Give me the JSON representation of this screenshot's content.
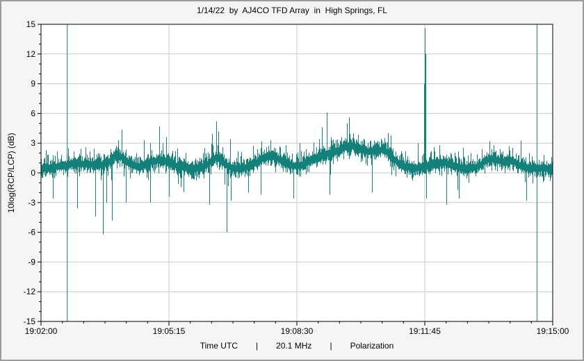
{
  "chart_data": {
    "type": "line",
    "title": "1/14/22  by  AJ4CO TFD Array  in  High Springs, FL",
    "ylabel": "10log(RCP/LCP) (dB)",
    "footer": {
      "left": "Time UTC",
      "sep": "|",
      "mid": "20.1 MHz",
      "right": "Polarization"
    },
    "x_axis": {
      "span_seconds": 780,
      "major_ticks": [
        {
          "t": 0,
          "label": "19:02:00"
        },
        {
          "t": 195,
          "label": "19:05:15"
        },
        {
          "t": 390,
          "label": "19:08:30"
        },
        {
          "t": 585,
          "label": "19:11:45"
        },
        {
          "t": 780,
          "label": "19:15:00"
        }
      ],
      "minor_step_seconds": 32.5
    },
    "y_axis": {
      "min": -15,
      "max": 15,
      "major_step": 3,
      "minor_step": 1
    },
    "colors": {
      "trace": "#14807a",
      "grid": "#c9c9c9",
      "axis": "#000000",
      "plot_bg": "#ffffff",
      "figure_bg": "#f5f5f5",
      "text": "#000000"
    },
    "signal": {
      "seed": 20220114,
      "baseline_db": 0.45,
      "noise_db": 0.45,
      "full_scale_lines_t": [
        40,
        756
      ],
      "bursts": [
        [
          60,
          0.5,
          25
        ],
        [
          118,
          1.2,
          12
        ],
        [
          180,
          0.8,
          18
        ],
        [
          268,
          1.1,
          10
        ],
        [
          350,
          1.2,
          18
        ],
        [
          430,
          1.2,
          20
        ],
        [
          470,
          1.5,
          18
        ],
        [
          497,
          1.0,
          25
        ],
        [
          523,
          1.2,
          14
        ],
        [
          610,
          0.6,
          15
        ],
        [
          687,
          1.0,
          12
        ],
        [
          717,
          0.7,
          10
        ]
      ],
      "spikes": [
        [
          10,
          1.8
        ],
        [
          19,
          -2.6
        ],
        [
          25,
          2.2
        ],
        [
          56,
          -3.6
        ],
        [
          68,
          2.6
        ],
        [
          75,
          2.2
        ],
        [
          83,
          -4.4
        ],
        [
          95,
          -6.2
        ],
        [
          100,
          -3.0
        ],
        [
          109,
          -4.8
        ],
        [
          112,
          2.0
        ],
        [
          118,
          3.3
        ],
        [
          125,
          1.9
        ],
        [
          130,
          -3.0
        ],
        [
          167,
          -3.0
        ],
        [
          181,
          4.7
        ],
        [
          186,
          3.0
        ],
        [
          191,
          3.6
        ],
        [
          196,
          -2.4
        ],
        [
          205,
          2.2
        ],
        [
          247,
          2.0
        ],
        [
          257,
          -3.2
        ],
        [
          262,
          2.8
        ],
        [
          268,
          5.2
        ],
        [
          271,
          4.2
        ],
        [
          277,
          2.6
        ],
        [
          284,
          -6.0
        ],
        [
          289,
          3.4
        ],
        [
          290,
          -2.8
        ],
        [
          300,
          2.2
        ],
        [
          330,
          2.4
        ],
        [
          335,
          -2.2
        ],
        [
          344,
          2.6
        ],
        [
          350,
          3.3
        ],
        [
          356,
          2.4
        ],
        [
          374,
          2.8
        ],
        [
          385,
          -2.6
        ],
        [
          395,
          3.0
        ],
        [
          404,
          2.4
        ],
        [
          424,
          3.4
        ],
        [
          429,
          4.6
        ],
        [
          436,
          6.1
        ],
        [
          440,
          -2.2
        ],
        [
          442,
          3.6
        ],
        [
          452,
          3.0
        ],
        [
          470,
          5.6
        ],
        [
          476,
          4.0
        ],
        [
          488,
          3.2
        ],
        [
          505,
          -2.0
        ],
        [
          510,
          2.6
        ],
        [
          521,
          2.9
        ],
        [
          535,
          2.4
        ],
        [
          550,
          2.2
        ],
        [
          575,
          3.0
        ],
        [
          584.5,
          9.0
        ],
        [
          585.5,
          14.6
        ],
        [
          586.5,
          12.0
        ],
        [
          587.5,
          -2.6
        ],
        [
          599,
          2.6
        ],
        [
          608,
          2.8
        ],
        [
          618,
          -3.2
        ],
        [
          637,
          -2.6
        ],
        [
          655,
          2.0
        ],
        [
          672,
          2.4
        ],
        [
          684,
          3.2
        ],
        [
          690,
          2.8
        ],
        [
          700,
          2.4
        ],
        [
          714,
          2.7
        ],
        [
          740,
          -2.8
        ],
        [
          745,
          2.0
        ],
        [
          767,
          1.8
        ]
      ]
    }
  }
}
